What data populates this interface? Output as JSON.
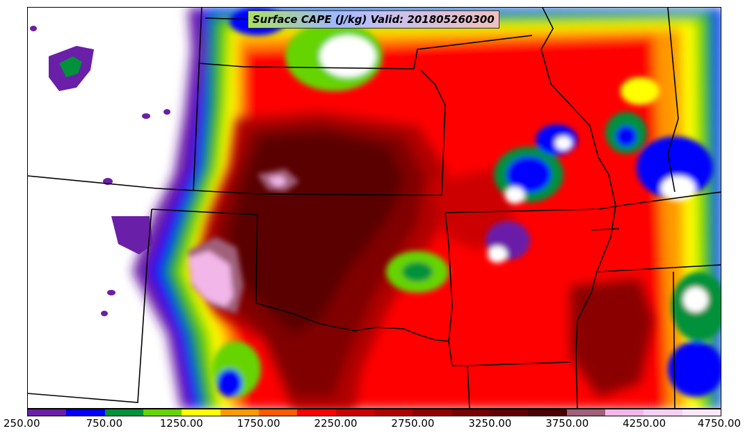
{
  "title": "Surface CAPE (J/kg) Valid: 201805260300",
  "colorbar": {
    "colors": [
      "#6a1fa8",
      "#0000ff",
      "#00913a",
      "#66d400",
      "#ffff00",
      "#ff9900",
      "#ff5a00",
      "#ff0000",
      "#cc0000",
      "#b00000",
      "#900000",
      "#780000",
      "#600000",
      "#4a0000",
      "#a0607a",
      "#f3b6e8",
      "#f6cff2",
      "#fbe6fb"
    ],
    "tick_labels": [
      "250.00",
      "750.00",
      "1250.00",
      "1750.00",
      "2250.00",
      "2750.00",
      "3250.00",
      "3750.00",
      "4250.00",
      "4750.00"
    ]
  }
}
